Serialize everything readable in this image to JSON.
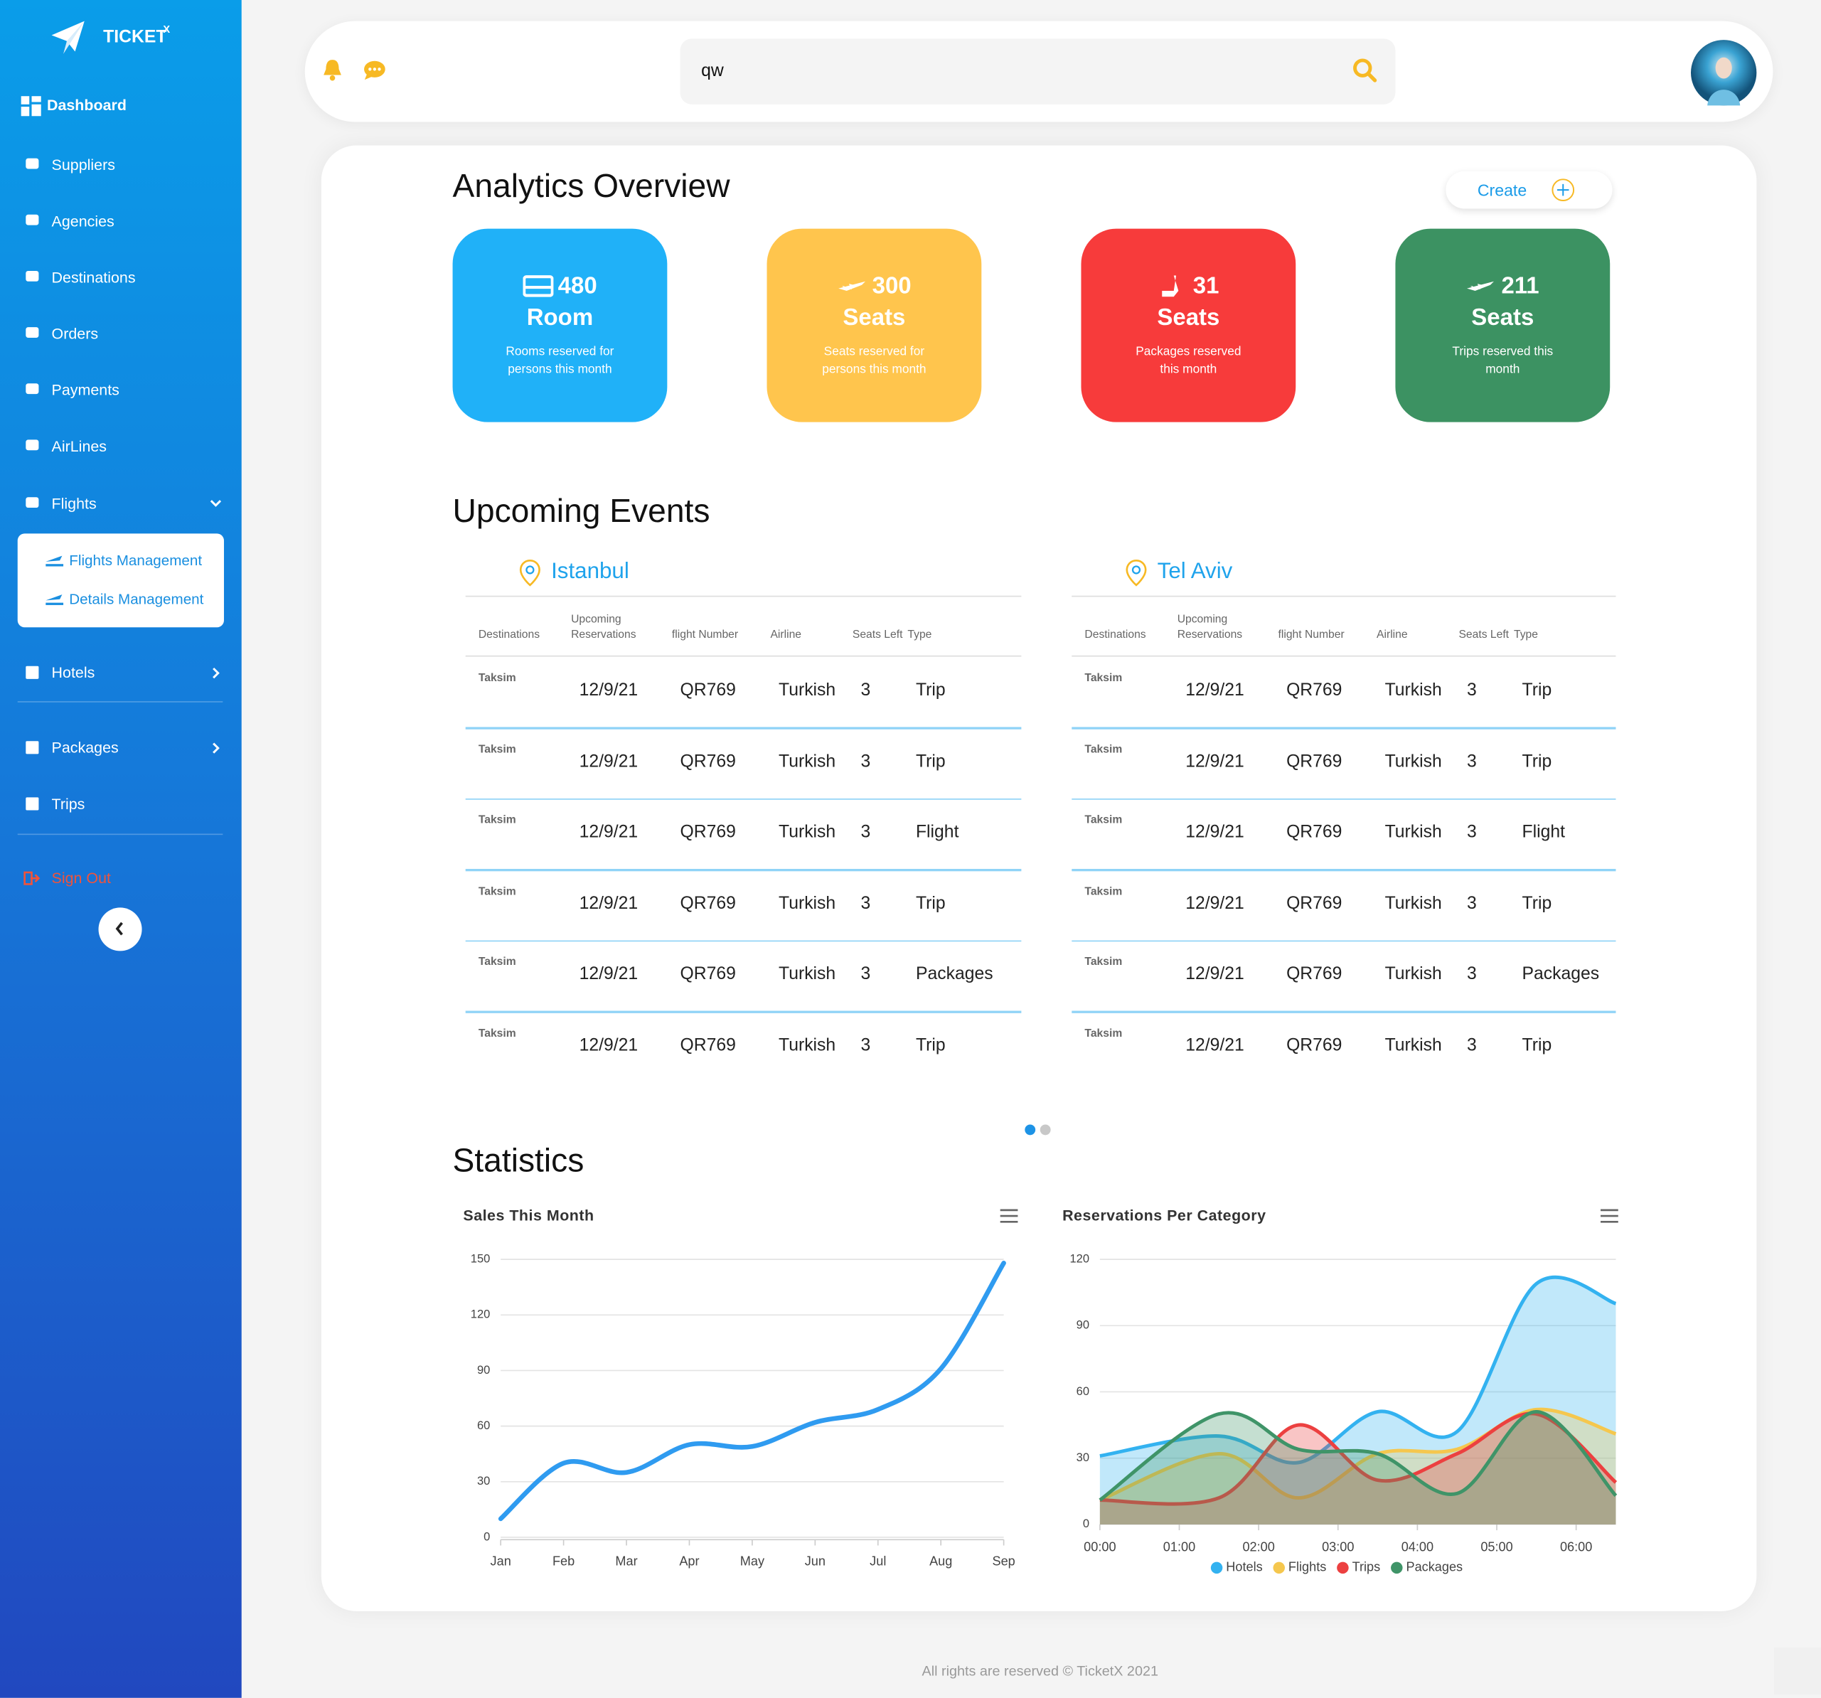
{
  "brand": {
    "name": "TICKET",
    "sup": "X"
  },
  "sidebar": {
    "items": [
      "Dashboard",
      "Suppliers",
      "Agencies",
      "Destinations",
      "Orders",
      "Payments",
      "AirLines",
      "Flights"
    ],
    "flights_submenu": [
      "Flights Management",
      "Details Management"
    ],
    "items_after": [
      "Hotels",
      "Packages",
      "Trips"
    ],
    "sign_out": "Sign Out"
  },
  "header": {
    "search": "qw"
  },
  "analytics": {
    "title": "Analytics Overview",
    "create": "Create",
    "cards": [
      {
        "value": "480",
        "unit": "Room",
        "desc": "Rooms reserved for persons this month",
        "color": "#20b1f8"
      },
      {
        "value": "300",
        "unit": "Seats",
        "desc": "Seats reserved for persons this month",
        "color": "#ffc54d"
      },
      {
        "value": "31",
        "unit": "Seats",
        "desc": "Packages reserved this month",
        "color": "#f73b3b"
      },
      {
        "value": "211",
        "unit": "Seats",
        "desc": "Trips reserved this month",
        "color": "#3c9262"
      }
    ]
  },
  "events": {
    "title": "Upcoming Events",
    "columns": [
      "Destinations",
      "Upcoming Reservations",
      "flight Number",
      "Airline",
      "Seats Left",
      "Type"
    ],
    "tables": [
      {
        "city": "Istanbul",
        "rows": [
          [
            "Taksim",
            "12/9/21",
            "QR769",
            "Turkish",
            "3",
            "Trip"
          ],
          [
            "Taksim",
            "12/9/21",
            "QR769",
            "Turkish",
            "3",
            "Trip"
          ],
          [
            "Taksim",
            "12/9/21",
            "QR769",
            "Turkish",
            "3",
            "Flight"
          ],
          [
            "Taksim",
            "12/9/21",
            "QR769",
            "Turkish",
            "3",
            "Trip"
          ],
          [
            "Taksim",
            "12/9/21",
            "QR769",
            "Turkish",
            "3",
            "Packages"
          ],
          [
            "Taksim",
            "12/9/21",
            "QR769",
            "Turkish",
            "3",
            "Trip"
          ]
        ]
      },
      {
        "city": "Tel Aviv",
        "rows": [
          [
            "Taksim",
            "12/9/21",
            "QR769",
            "Turkish",
            "3",
            "Trip"
          ],
          [
            "Taksim",
            "12/9/21",
            "QR769",
            "Turkish",
            "3",
            "Trip"
          ],
          [
            "Taksim",
            "12/9/21",
            "QR769",
            "Turkish",
            "3",
            "Flight"
          ],
          [
            "Taksim",
            "12/9/21",
            "QR769",
            "Turkish",
            "3",
            "Trip"
          ],
          [
            "Taksim",
            "12/9/21",
            "QR769",
            "Turkish",
            "3",
            "Packages"
          ],
          [
            "Taksim",
            "12/9/21",
            "QR769",
            "Turkish",
            "3",
            "Trip"
          ]
        ]
      }
    ]
  },
  "statistics": {
    "title": "Statistics"
  },
  "chart_data": [
    {
      "type": "line",
      "title": "Sales This Month",
      "categories": [
        "Jan",
        "Feb",
        "Mar",
        "Apr",
        "May",
        "Jun",
        "Jul",
        "Aug",
        "Sep"
      ],
      "values": [
        10,
        40,
        35,
        50,
        49,
        62,
        69,
        91,
        148
      ],
      "color": "#2f9bf0",
      "ylim": [
        0,
        150
      ],
      "yticks": [
        0,
        30,
        60,
        90,
        120,
        150
      ],
      "grid": true
    },
    {
      "type": "area",
      "title": "Reservations Per Category",
      "x": [
        0,
        1.5,
        2.5,
        3.5,
        4.5,
        5.5,
        6.5
      ],
      "xlim": [
        0,
        6.5
      ],
      "xticks": [
        {
          "value": 0,
          "label": "00:00"
        },
        {
          "value": 1,
          "label": "01:00"
        },
        {
          "value": 2,
          "label": "02:00"
        },
        {
          "value": 3,
          "label": "03:00"
        },
        {
          "value": 4,
          "label": "04:00"
        },
        {
          "value": 5,
          "label": "05:00"
        },
        {
          "value": 6,
          "label": "06:00"
        }
      ],
      "ylim": [
        0,
        120
      ],
      "yticks": [
        0,
        30,
        60,
        90,
        120
      ],
      "grid": true,
      "legend": "bottom",
      "series": [
        {
          "name": "Hotels",
          "color": "#33b2f0",
          "values": [
            31,
            40,
            28,
            51,
            42,
            109,
            100
          ]
        },
        {
          "name": "Flights",
          "color": "#f5c74e",
          "values": [
            11,
            32,
            12,
            32,
            34,
            52,
            41
          ]
        },
        {
          "name": "Trips",
          "color": "#ec4040",
          "values": [
            11,
            12,
            45,
            20,
            32,
            50,
            19
          ]
        },
        {
          "name": "Packages",
          "color": "#3f9468",
          "values": [
            11,
            50,
            34,
            32,
            14,
            51,
            13
          ]
        }
      ]
    }
  ],
  "footer": "All rights are reserved © TicketX 2021"
}
